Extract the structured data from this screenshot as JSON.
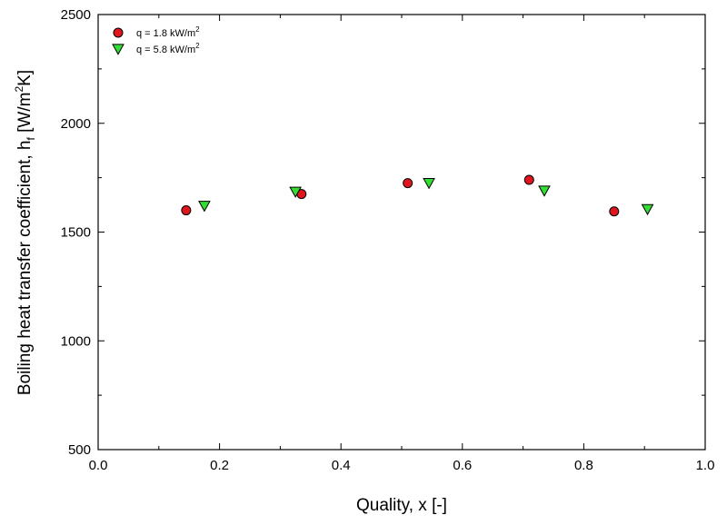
{
  "chart_data": {
    "type": "scatter",
    "xlabel": "Quality, x [-]",
    "ylabel": {
      "main": "Boiling heat transfer coefficient, h",
      "subscript": "f",
      "unit_open": " [W/m",
      "unit_sup": "2",
      "unit_close": "K]"
    },
    "xlim": [
      0.0,
      1.0
    ],
    "ylim": [
      500,
      2500
    ],
    "x_ticks": [
      "0.0",
      "0.2",
      "0.4",
      "0.6",
      "0.8",
      "1.0"
    ],
    "y_ticks": [
      "500",
      "1000",
      "1500",
      "2000",
      "2500"
    ],
    "grid": false,
    "legend_position": "top-left",
    "series": [
      {
        "name": "q = 1.8 kW/m",
        "name_sup": "2",
        "marker": "circle",
        "color": "#e0161e",
        "x": [
          0.145,
          0.335,
          0.51,
          0.71,
          0.85
        ],
        "y": [
          1600,
          1675,
          1725,
          1740,
          1595
        ]
      },
      {
        "name": "q = 5.8 kW/m",
        "name_sup": "2",
        "marker": "triangle-down",
        "color": "#33dd33",
        "x": [
          0.175,
          0.325,
          0.545,
          0.735,
          0.905
        ],
        "y": [
          1620,
          1685,
          1725,
          1690,
          1605
        ]
      }
    ]
  }
}
